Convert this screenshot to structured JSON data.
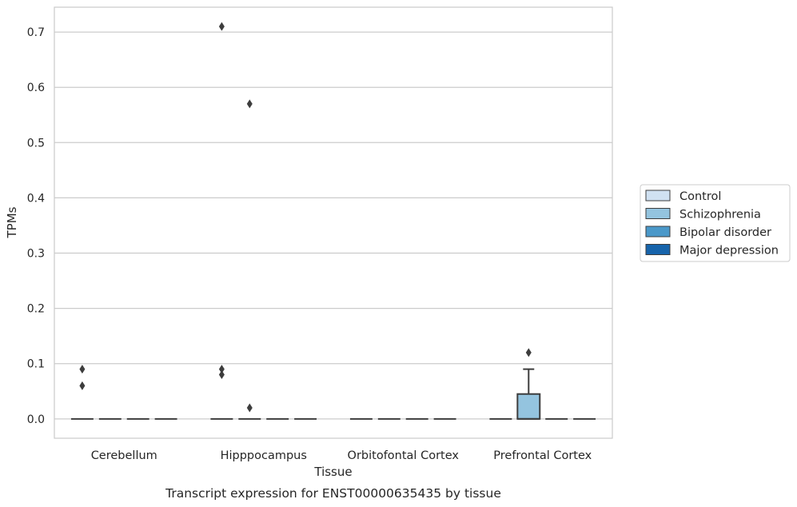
{
  "chart_data": {
    "type": "box",
    "title": "Transcript expression for ENST00000635435 by tissue",
    "xlabel": "Tissue",
    "ylabel": "TPMs",
    "ylim": [
      -0.035,
      0.745
    ],
    "yticks": [
      0.0,
      0.1,
      0.2,
      0.3,
      0.4,
      0.5,
      0.6,
      0.7
    ],
    "ytick_labels": [
      "0.0",
      "0.1",
      "0.2",
      "0.3",
      "0.4",
      "0.5",
      "0.6",
      "0.7"
    ],
    "categories": [
      "Cerebellum",
      "Hipppocampus",
      "Orbitofontal Cortex",
      "Prefrontal Cortex"
    ],
    "grid": "horizontal",
    "legend_position": "right",
    "series": [
      {
        "name": "Control",
        "color": "#d0e1f2",
        "boxes": [
          {
            "category": "Cerebellum",
            "whislo": 0,
            "q1": 0,
            "med": 0,
            "q3": 0,
            "whishi": 0,
            "fliers": [
              0.09,
              0.06
            ]
          },
          {
            "category": "Hipppocampus",
            "whislo": 0,
            "q1": 0,
            "med": 0,
            "q3": 0,
            "whishi": 0,
            "fliers": [
              0.71,
              0.09,
              0.08
            ]
          },
          {
            "category": "Orbitofontal Cortex",
            "whislo": 0,
            "q1": 0,
            "med": 0,
            "q3": 0,
            "whishi": 0,
            "fliers": []
          },
          {
            "category": "Prefrontal Cortex",
            "whislo": 0,
            "q1": 0,
            "med": 0,
            "q3": 0,
            "whishi": 0,
            "fliers": []
          }
        ]
      },
      {
        "name": "Schizophrenia",
        "color": "#94c4df",
        "boxes": [
          {
            "category": "Cerebellum",
            "whislo": 0,
            "q1": 0,
            "med": 0,
            "q3": 0,
            "whishi": 0,
            "fliers": []
          },
          {
            "category": "Hipppocampus",
            "whislo": 0,
            "q1": 0,
            "med": 0,
            "q3": 0,
            "whishi": 0,
            "fliers": [
              0.57,
              0.02
            ]
          },
          {
            "category": "Orbitofontal Cortex",
            "whislo": 0,
            "q1": 0,
            "med": 0,
            "q3": 0,
            "whishi": 0,
            "fliers": []
          },
          {
            "category": "Prefrontal Cortex",
            "whislo": 0,
            "q1": 0,
            "med": 0,
            "q3": 0.045,
            "whishi": 0.09,
            "fliers": [
              0.12
            ]
          }
        ]
      },
      {
        "name": "Bipolar disorder",
        "color": "#4a98c9",
        "boxes": [
          {
            "category": "Cerebellum",
            "whislo": 0,
            "q1": 0,
            "med": 0,
            "q3": 0,
            "whishi": 0,
            "fliers": []
          },
          {
            "category": "Hipppocampus",
            "whislo": 0,
            "q1": 0,
            "med": 0,
            "q3": 0,
            "whishi": 0,
            "fliers": []
          },
          {
            "category": "Orbitofontal Cortex",
            "whislo": 0,
            "q1": 0,
            "med": 0,
            "q3": 0,
            "whishi": 0,
            "fliers": []
          },
          {
            "category": "Prefrontal Cortex",
            "whislo": 0,
            "q1": 0,
            "med": 0,
            "q3": 0,
            "whishi": 0,
            "fliers": []
          }
        ]
      },
      {
        "name": "Major depression",
        "color": "#1764ab",
        "boxes": [
          {
            "category": "Cerebellum",
            "whislo": 0,
            "q1": 0,
            "med": 0,
            "q3": 0,
            "whishi": 0,
            "fliers": []
          },
          {
            "category": "Hipppocampus",
            "whislo": 0,
            "q1": 0,
            "med": 0,
            "q3": 0,
            "whishi": 0,
            "fliers": []
          },
          {
            "category": "Orbitofontal Cortex",
            "whislo": 0,
            "q1": 0,
            "med": 0,
            "q3": 0,
            "whishi": 0,
            "fliers": []
          },
          {
            "category": "Prefrontal Cortex",
            "whislo": 0,
            "q1": 0,
            "med": 0,
            "q3": 0,
            "whishi": 0,
            "fliers": []
          }
        ]
      }
    ],
    "colors": {
      "grid": "#cccccc",
      "axes_edge": "#cccccc",
      "box_line": "#3d3d3d",
      "flier": "#3d3d3d",
      "text": "#262626"
    }
  }
}
